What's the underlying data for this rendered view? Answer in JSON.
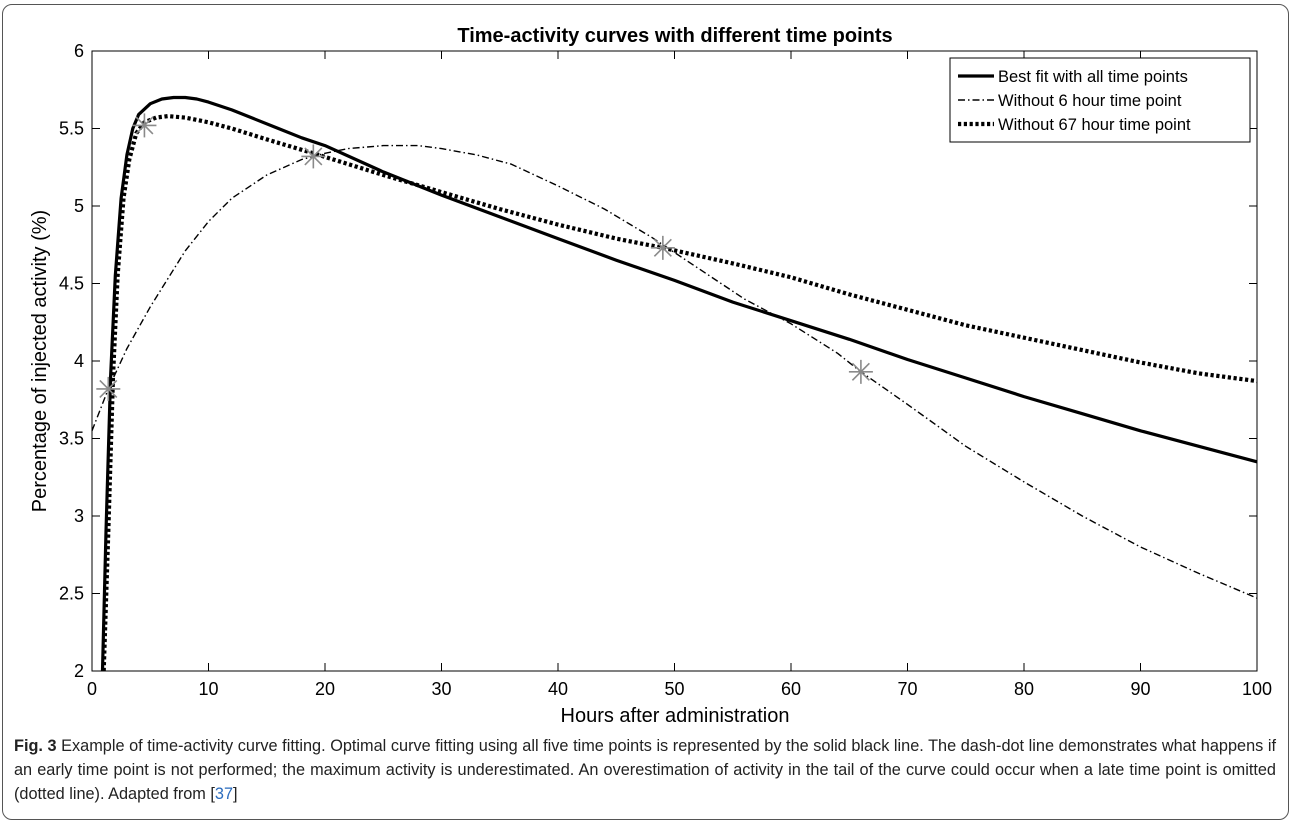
{
  "chart_data": {
    "type": "line",
    "title": "Time-activity curves with different time points",
    "xlabel": "Hours after administration",
    "ylabel": "Percentage of injected activity (%)",
    "xlim": [
      0,
      100
    ],
    "ylim": [
      2,
      6
    ],
    "xticks": [
      "0",
      "10",
      "20",
      "30",
      "40",
      "50",
      "60",
      "70",
      "80",
      "90",
      "100"
    ],
    "yticks": [
      "2",
      "2.5",
      "3",
      "3.5",
      "4",
      "4.5",
      "5",
      "5.5",
      "6"
    ],
    "grid": false,
    "legend_position": "top-right",
    "series": [
      {
        "name": "Best fit with all time points",
        "style": "solid",
        "x": [
          0.9,
          1.2,
          1.6,
          2,
          2.5,
          3,
          3.5,
          4,
          5,
          6,
          7,
          8,
          9,
          10,
          12,
          14,
          16,
          18,
          20,
          25,
          30,
          35,
          40,
          45,
          50,
          55,
          60,
          65,
          70,
          75,
          80,
          85,
          90,
          95,
          100
        ],
        "y": [
          2.0,
          2.9,
          3.9,
          4.55,
          5.05,
          5.33,
          5.5,
          5.59,
          5.66,
          5.69,
          5.7,
          5.7,
          5.69,
          5.67,
          5.62,
          5.56,
          5.5,
          5.44,
          5.39,
          5.22,
          5.07,
          4.93,
          4.79,
          4.65,
          4.52,
          4.38,
          4.26,
          4.14,
          4.01,
          3.89,
          3.77,
          3.66,
          3.55,
          3.45,
          3.35
        ]
      },
      {
        "name": "Without 6 hour time point",
        "style": "dash-dot",
        "x": [
          0,
          1.4,
          3,
          5,
          8,
          10,
          12,
          15,
          18,
          20,
          22,
          25,
          28,
          30,
          33,
          36,
          40,
          44,
          48,
          52,
          56,
          60,
          64,
          66,
          70,
          75,
          80,
          85,
          90,
          95,
          100
        ],
        "y": [
          3.55,
          3.82,
          4.08,
          4.35,
          4.71,
          4.9,
          5.05,
          5.2,
          5.3,
          5.34,
          5.37,
          5.39,
          5.39,
          5.37,
          5.33,
          5.27,
          5.13,
          4.98,
          4.8,
          4.6,
          4.4,
          4.24,
          4.05,
          3.93,
          3.72,
          3.45,
          3.22,
          3.0,
          2.8,
          2.63,
          2.47
        ]
      },
      {
        "name": "Without 67 hour time point",
        "style": "dotted",
        "x": [
          1.0,
          1.4,
          1.8,
          2.2,
          2.7,
          3.2,
          3.8,
          4.5,
          5.5,
          6.5,
          8,
          10,
          12,
          15,
          19,
          25,
          30,
          35,
          40,
          45,
          49,
          55,
          60,
          65,
          70,
          75,
          80,
          85,
          90,
          95,
          100
        ],
        "y": [
          2.0,
          2.9,
          3.9,
          4.55,
          5.05,
          5.3,
          5.47,
          5.54,
          5.57,
          5.58,
          5.57,
          5.54,
          5.5,
          5.43,
          5.34,
          5.2,
          5.09,
          4.98,
          4.88,
          4.79,
          4.73,
          4.63,
          4.54,
          4.43,
          4.33,
          4.23,
          4.15,
          4.07,
          3.99,
          3.92,
          3.87
        ]
      }
    ],
    "measured_points": {
      "marker": "asterisk",
      "x": [
        1.4,
        4.5,
        19,
        49,
        66
      ],
      "y": [
        3.82,
        5.52,
        5.32,
        4.73,
        3.93
      ]
    }
  },
  "caption": {
    "label": "Fig. 3",
    "text": " Example of time-activity curve fitting. Optimal curve fitting using all five time points is represented by the solid black line. The dash-dot line demonstrates what happens if an early time point is not performed; the maximum activity is underestimated. An overestimation of activity in the tail of the curve could occur when a late time point is omitted (dotted line). Adapted from [",
    "ref": "37",
    "close": "]"
  }
}
